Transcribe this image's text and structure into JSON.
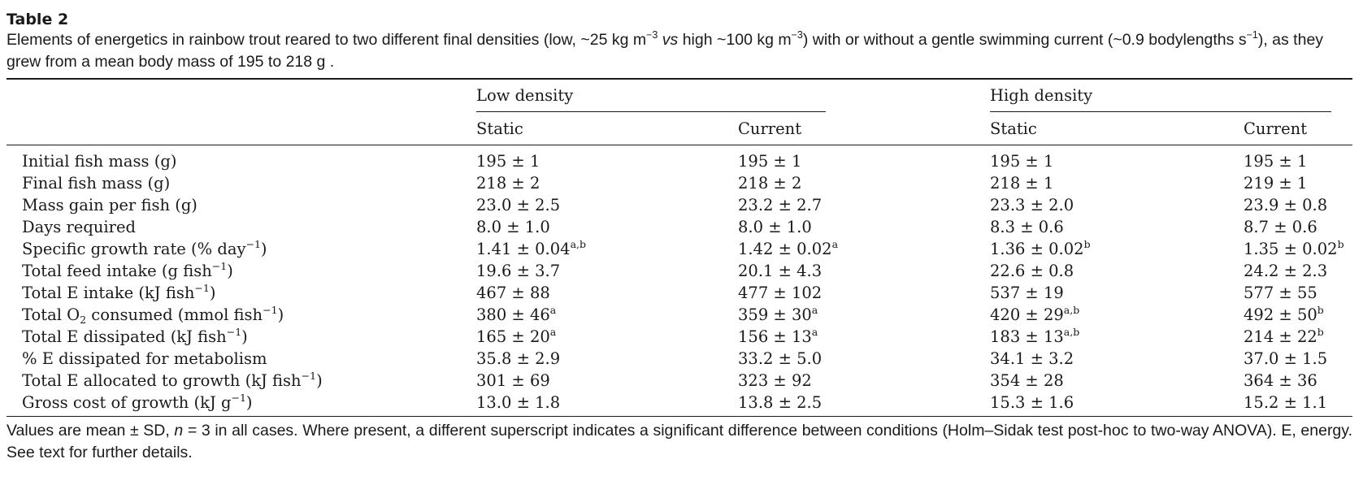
{
  "table_label": "Table 2",
  "caption": {
    "part1": "Elements of energetics in rainbow trout reared to two different final densities (low, ~25 kg m",
    "exp1": "−3",
    "vs": "vs",
    "part2": "high ~100 kg m",
    "exp2": "−3",
    "part3": ") with or without a gentle swimming current (~0.9 bodylengths s",
    "exp3": "−1",
    "part4": "), as they grew from a mean body mass of 195 to 218 g ."
  },
  "groups": [
    "Low density",
    "High density"
  ],
  "subheaders": [
    "Static",
    "Current",
    "Static",
    "Current"
  ],
  "rows": [
    {
      "label": "Initial fish mass (g)",
      "cells": [
        {
          "v": "195 ± 1",
          "s": ""
        },
        {
          "v": "195 ± 1",
          "s": ""
        },
        {
          "v": "195 ± 1",
          "s": ""
        },
        {
          "v": "195 ± 1",
          "s": ""
        }
      ]
    },
    {
      "label": "Final fish mass (g)",
      "cells": [
        {
          "v": "218 ± 2",
          "s": ""
        },
        {
          "v": "218 ± 2",
          "s": ""
        },
        {
          "v": "218 ± 1",
          "s": ""
        },
        {
          "v": "219 ± 1",
          "s": ""
        }
      ]
    },
    {
      "label": "Mass gain per fish (g)",
      "cells": [
        {
          "v": "23.0 ± 2.5",
          "s": ""
        },
        {
          "v": "23.2 ± 2.7",
          "s": ""
        },
        {
          "v": "23.3 ± 2.0",
          "s": ""
        },
        {
          "v": "23.9 ± 0.8",
          "s": ""
        }
      ]
    },
    {
      "label": "Days required",
      "cells": [
        {
          "v": "8.0 ± 1.0",
          "s": ""
        },
        {
          "v": "8.0 ± 1.0",
          "s": ""
        },
        {
          "v": "8.3 ± 0.6",
          "s": ""
        },
        {
          "v": "8.7 ± 0.6",
          "s": ""
        }
      ]
    },
    {
      "label": "Specific growth rate (% day",
      "labelSup": "−1",
      "labelEnd": ")",
      "cells": [
        {
          "v": "1.41 ± 0.04",
          "s": "a,b"
        },
        {
          "v": "1.42 ± 0.02",
          "s": "a"
        },
        {
          "v": "1.36 ± 0.02",
          "s": "b"
        },
        {
          "v": "1.35 ± 0.02",
          "s": "b"
        }
      ]
    },
    {
      "label": "Total feed intake (g fish",
      "labelSup": "−1",
      "labelEnd": ")",
      "cells": [
        {
          "v": "19.6 ± 3.7",
          "s": ""
        },
        {
          "v": "20.1 ± 4.3",
          "s": ""
        },
        {
          "v": "22.6 ± 0.8",
          "s": ""
        },
        {
          "v": "24.2 ± 2.3",
          "s": ""
        }
      ]
    },
    {
      "label": "Total E intake (kJ fish",
      "labelSup": "−1",
      "labelEnd": ")",
      "cells": [
        {
          "v": "467 ± 88",
          "s": ""
        },
        {
          "v": "477 ± 102",
          "s": ""
        },
        {
          "v": "537 ± 19",
          "s": ""
        },
        {
          "v": "577 ± 55",
          "s": ""
        }
      ]
    },
    {
      "label": "Total O",
      "labelSub": "2",
      "labelMid": " consumed (mmol fish",
      "labelSup": "−1",
      "labelEnd": ")",
      "cells": [
        {
          "v": "380 ± 46",
          "s": "a"
        },
        {
          "v": "359 ± 30",
          "s": "a"
        },
        {
          "v": "420 ± 29",
          "s": "a,b"
        },
        {
          "v": "492 ± 50",
          "s": "b"
        }
      ]
    },
    {
      "label": "Total E dissipated (kJ fish",
      "labelSup": "−1",
      "labelEnd": ")",
      "cells": [
        {
          "v": "165 ± 20",
          "s": "a"
        },
        {
          "v": "156 ± 13",
          "s": "a"
        },
        {
          "v": "183 ± 13",
          "s": "a,b"
        },
        {
          "v": "214 ± 22",
          "s": "b"
        }
      ]
    },
    {
      "label": "% E dissipated for metabolism",
      "cells": [
        {
          "v": "35.8 ± 2.9",
          "s": ""
        },
        {
          "v": "33.2 ± 5.0",
          "s": ""
        },
        {
          "v": "34.1 ± 3.2",
          "s": ""
        },
        {
          "v": "37.0 ± 1.5",
          "s": ""
        }
      ]
    },
    {
      "label": "Total E allocated to growth (kJ fish",
      "labelSup": "−1",
      "labelEnd": ")",
      "cells": [
        {
          "v": "301 ± 69",
          "s": ""
        },
        {
          "v": "323 ± 92",
          "s": ""
        },
        {
          "v": "354 ± 28",
          "s": ""
        },
        {
          "v": "364 ± 36",
          "s": ""
        }
      ]
    },
    {
      "label": "Gross cost of growth (kJ g",
      "labelSup": "−1",
      "labelEnd": ")",
      "cells": [
        {
          "v": "13.0 ± 1.8",
          "s": ""
        },
        {
          "v": "13.8 ± 2.5",
          "s": ""
        },
        {
          "v": "15.3 ± 1.6",
          "s": ""
        },
        {
          "v": "15.2 ± 1.1",
          "s": ""
        }
      ]
    }
  ],
  "footnote": {
    "part1": "Values are mean ± SD, ",
    "n": "n",
    "part2": " = 3 in all cases. Where present, a different superscript indicates a significant difference between conditions (Holm–Sidak test post-hoc to two-way ANOVA). E, energy. See text for further details."
  }
}
